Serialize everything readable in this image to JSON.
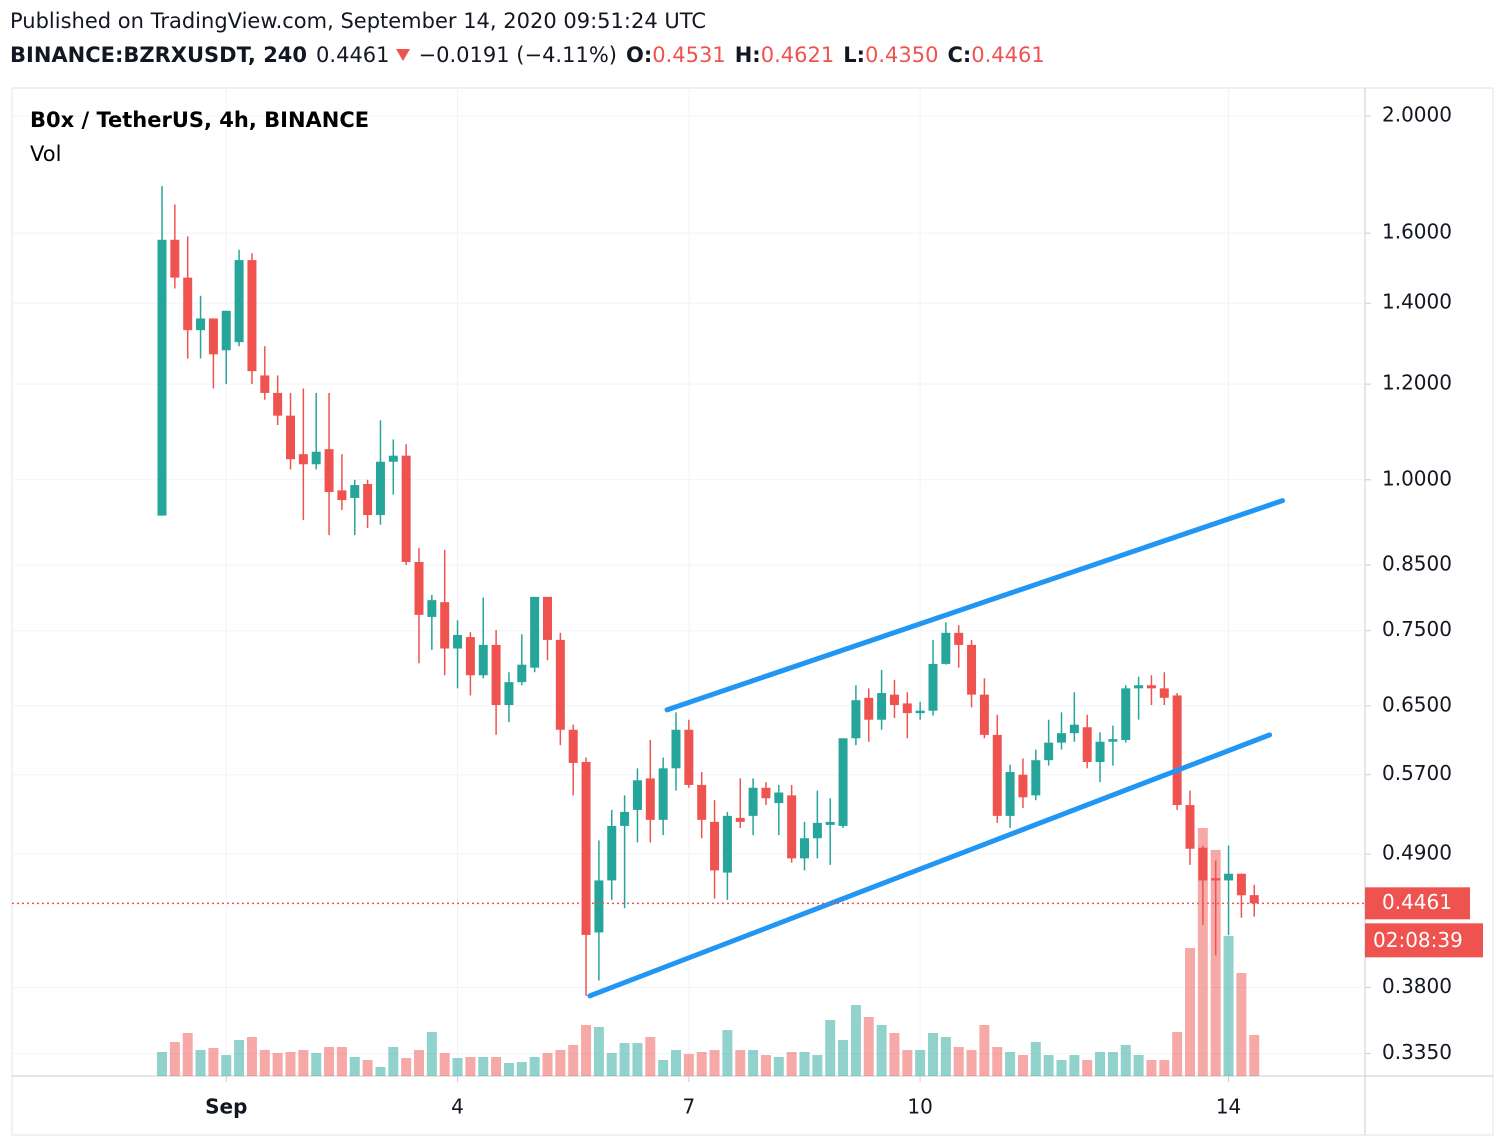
{
  "header": {
    "published": "Published on TradingView.com, September 14, 2020 09:51:24 UTC",
    "symbol": "BINANCE:BZRXUSDT, 240",
    "last": "0.4461",
    "change": "−0.0191 (−4.11%)",
    "ohlc": [
      {
        "key": "O:",
        "value": "0.4531"
      },
      {
        "key": "H:",
        "value": "0.4621"
      },
      {
        "key": "L:",
        "value": "0.4350"
      },
      {
        "key": "C:",
        "value": "0.4461"
      }
    ]
  },
  "chart_data": {
    "type": "candlestick",
    "title": "B0x / TetherUS, 4h, BINANCE",
    "volume_label": "Vol",
    "log_scale": true,
    "grid": true,
    "up_color": "#26a69a",
    "down_color": "#ef5350",
    "trendline_color": "#2196f3",
    "ylim": [
      0.321,
      2.11
    ],
    "yticks": [
      {
        "value": 2,
        "label": "2.0000"
      },
      {
        "value": 1.6,
        "label": "1.6000"
      },
      {
        "value": 1.4,
        "label": "1.4000"
      },
      {
        "value": 1.2,
        "label": "1.2000"
      },
      {
        "value": 1,
        "label": "1.0000"
      },
      {
        "value": 0.85,
        "label": "0.8500"
      },
      {
        "value": 0.75,
        "label": "0.7500"
      },
      {
        "value": 0.65,
        "label": "0.6500"
      },
      {
        "value": 0.57,
        "label": "0.5700"
      },
      {
        "value": 0.49,
        "label": "0.4900"
      },
      {
        "value": 0.38,
        "label": "0.3800"
      },
      {
        "value": 0.335,
        "label": "0.3350"
      }
    ],
    "categories": [
      null,
      null,
      null,
      null,
      null,
      "Sep",
      null,
      null,
      null,
      null,
      null,
      null,
      null,
      null,
      null,
      null,
      null,
      null,
      null,
      null,
      null,
      null,
      null,
      "4",
      null,
      null,
      null,
      null,
      null,
      null,
      null,
      null,
      null,
      null,
      null,
      null,
      null,
      null,
      null,
      null,
      null,
      "7",
      null,
      null,
      null,
      null,
      null,
      null,
      null,
      null,
      null,
      null,
      null,
      null,
      null,
      null,
      null,
      null,
      null,
      "10",
      null,
      null,
      null,
      null,
      null,
      null,
      null,
      null,
      null,
      null,
      null,
      null,
      null,
      null,
      null,
      null,
      null,
      null,
      null,
      null,
      null,
      null,
      null,
      "14",
      null,
      null
    ],
    "open": [
      0.934,
      1.58,
      1.47,
      1.33,
      1.36,
      1.28,
      1.3,
      1.52,
      1.22,
      1.18,
      1.13,
      1.05,
      1.03,
      1.06,
      0.98,
      0.966,
      0.992,
      0.935,
      1.035,
      1.047,
      0.855,
      0.77,
      0.792,
      0.725,
      0.741,
      0.689,
      0.73,
      0.651,
      0.68,
      0.699,
      0.8,
      0.737,
      0.621,
      0.584,
      0.422,
      0.466,
      0.517,
      0.533,
      0.566,
      0.523,
      0.577,
      0.621,
      0.559,
      0.521,
      0.473,
      0.525,
      0.527,
      0.556,
      0.54,
      0.548,
      0.486,
      0.505,
      0.518,
      0.517,
      0.611,
      0.66,
      0.633,
      0.664,
      0.653,
      0.641,
      0.644,
      0.704,
      0.747,
      0.73,
      0.664,
      0.615,
      0.527,
      0.57,
      0.548,
      0.586,
      0.606,
      0.617,
      0.624,
      0.584,
      0.607,
      0.609,
      0.672,
      0.676,
      0.672,
      0.663,
      0.538,
      0.496,
      0.468,
      0.466,
      0.472,
      0.4531
    ],
    "high": [
      1.75,
      1.69,
      1.59,
      1.42,
      1.36,
      1.38,
      1.55,
      1.54,
      1.29,
      1.22,
      1.18,
      1.19,
      1.18,
      1.18,
      1.05,
      1.0,
      1.0,
      1.12,
      1.08,
      1.07,
      0.878,
      0.803,
      0.875,
      0.765,
      0.748,
      0.799,
      0.751,
      0.693,
      0.745,
      0.8,
      0.8,
      0.747,
      0.627,
      0.589,
      0.503,
      0.533,
      0.548,
      0.577,
      0.609,
      0.589,
      0.642,
      0.633,
      0.573,
      0.543,
      0.531,
      0.566,
      0.566,
      0.562,
      0.559,
      0.559,
      0.521,
      0.553,
      0.545,
      0.611,
      0.676,
      0.672,
      0.696,
      0.683,
      0.667,
      0.655,
      0.737,
      0.762,
      0.758,
      0.737,
      0.685,
      0.639,
      0.581,
      0.588,
      0.598,
      0.633,
      0.642,
      0.667,
      0.639,
      0.618,
      0.626,
      0.676,
      0.687,
      0.689,
      0.693,
      0.666,
      0.553,
      0.498,
      0.484,
      0.498,
      0.472,
      0.4621
    ],
    "low": [
      0.934,
      1.44,
      1.26,
      1.26,
      1.19,
      1.2,
      1.29,
      1.2,
      1.165,
      1.11,
      1.02,
      0.926,
      1.02,
      0.9,
      0.944,
      0.9,
      0.912,
      0.918,
      0.972,
      0.85,
      0.705,
      0.723,
      0.689,
      0.672,
      0.663,
      0.685,
      0.615,
      0.63,
      0.676,
      0.693,
      0.709,
      0.603,
      0.548,
      0.374,
      0.385,
      0.449,
      0.442,
      0.501,
      0.501,
      0.508,
      0.553,
      0.556,
      0.505,
      0.45,
      0.449,
      0.515,
      0.508,
      0.538,
      0.508,
      0.482,
      0.475,
      0.486,
      0.48,
      0.515,
      0.603,
      0.607,
      0.621,
      0.635,
      0.611,
      0.633,
      0.638,
      0.703,
      0.699,
      0.648,
      0.611,
      0.52,
      0.515,
      0.535,
      0.543,
      0.58,
      0.598,
      0.607,
      0.577,
      0.562,
      0.58,
      0.606,
      0.633,
      0.651,
      0.651,
      0.533,
      0.48,
      0.428,
      0.404,
      0.42,
      0.434,
      0.435
    ],
    "close": [
      1.58,
      1.47,
      1.33,
      1.36,
      1.27,
      1.38,
      1.52,
      1.23,
      1.18,
      1.13,
      1.04,
      1.03,
      1.055,
      0.977,
      0.962,
      0.99,
      0.935,
      1.035,
      1.047,
      0.855,
      0.773,
      0.795,
      0.725,
      0.744,
      0.689,
      0.73,
      0.651,
      0.68,
      0.703,
      0.8,
      0.737,
      0.621,
      0.583,
      0.42,
      0.466,
      0.517,
      0.531,
      0.564,
      0.523,
      0.577,
      0.621,
      0.559,
      0.523,
      0.475,
      0.527,
      0.521,
      0.556,
      0.545,
      0.551,
      0.486,
      0.505,
      0.52,
      0.521,
      0.611,
      0.657,
      0.633,
      0.666,
      0.651,
      0.641,
      0.644,
      0.704,
      0.747,
      0.73,
      0.664,
      0.615,
      0.527,
      0.573,
      0.546,
      0.586,
      0.606,
      0.617,
      0.627,
      0.584,
      0.607,
      0.61,
      0.672,
      0.676,
      0.672,
      0.66,
      0.538,
      0.495,
      0.466,
      0.466,
      0.472,
      0.453,
      0.4461
    ],
    "volume": [
      24,
      34,
      43,
      26,
      28,
      21,
      36,
      39,
      26,
      23,
      24,
      26,
      23,
      29,
      29,
      19,
      16,
      9,
      29,
      18,
      26,
      44,
      23,
      18,
      19,
      19,
      19,
      13,
      14,
      19,
      23,
      26,
      31,
      51,
      49,
      23,
      33,
      33,
      39,
      16,
      26,
      22,
      24,
      26,
      46,
      26,
      26,
      21,
      19,
      24,
      24,
      21,
      56,
      36,
      71,
      59,
      51,
      43,
      26,
      26,
      43,
      39,
      29,
      26,
      51,
      29,
      24,
      21,
      34,
      21,
      16,
      21,
      16,
      24,
      24,
      31,
      21,
      16,
      16,
      44,
      128,
      248,
      226,
      140,
      103,
      41
    ],
    "volume_ylim": [
      0,
      250
    ],
    "trendlines": [
      {
        "x": [
          39.3,
          87.2
        ],
        "y": [
          0.645,
          0.961
        ]
      },
      {
        "x": [
          33.3,
          86.2
        ],
        "y": [
          0.374,
          0.615
        ]
      }
    ],
    "last_price": {
      "value": 0.4461,
      "label": "0.4461"
    },
    "countdown": "02:08:39"
  }
}
